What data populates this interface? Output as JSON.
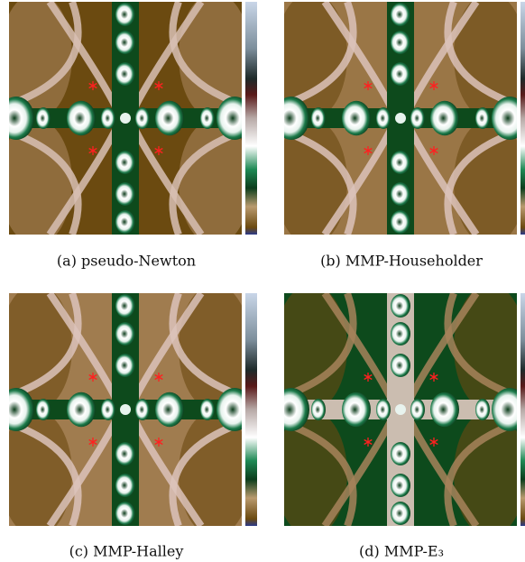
{
  "figure": {
    "panels": [
      {
        "caption": "(a) pseudo-Newton"
      },
      {
        "caption": "(b) MMP-Householder"
      },
      {
        "caption": "(c) MMP-Halley"
      },
      {
        "caption": "(d) MMP-E₃"
      }
    ]
  }
}
